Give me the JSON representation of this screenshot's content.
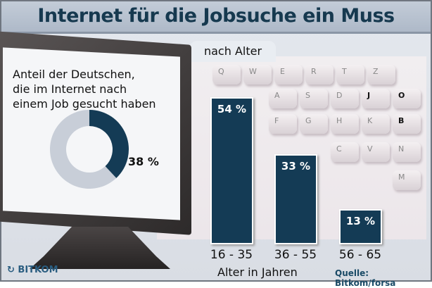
{
  "title": "Internet für die Jobsuche ein Muss",
  "tab_label": "nach Alter",
  "donut": {
    "text_lines": [
      "Anteil der Deutschen,",
      "die im Internet nach",
      "einem Job gesucht haben"
    ],
    "value": 38,
    "label": "38 %",
    "colors": {
      "value": "#143b55",
      "rest": "#c8ced8"
    }
  },
  "keyboard_keys": [
    "Q",
    "W",
    "E",
    "R",
    "T",
    "Z",
    "A",
    "S",
    "D",
    "J",
    "O",
    "B",
    "F",
    "G",
    "H",
    "K",
    "C",
    "V",
    "N",
    "M"
  ],
  "chart_data": {
    "type": "bar",
    "title": "nach Alter",
    "categories": [
      "16 - 35",
      "36 - 55",
      "56 - 65"
    ],
    "values": [
      54,
      33,
      13
    ],
    "labels": [
      "54 %",
      "33 %",
      "13 %"
    ],
    "xlabel": "Alter in Jahren",
    "ylabel": "",
    "ylim": [
      0,
      54
    ],
    "grid": false,
    "color": "#143b55"
  },
  "source": "Quelle: Bitkom/forsa",
  "logo": "BITKOM"
}
